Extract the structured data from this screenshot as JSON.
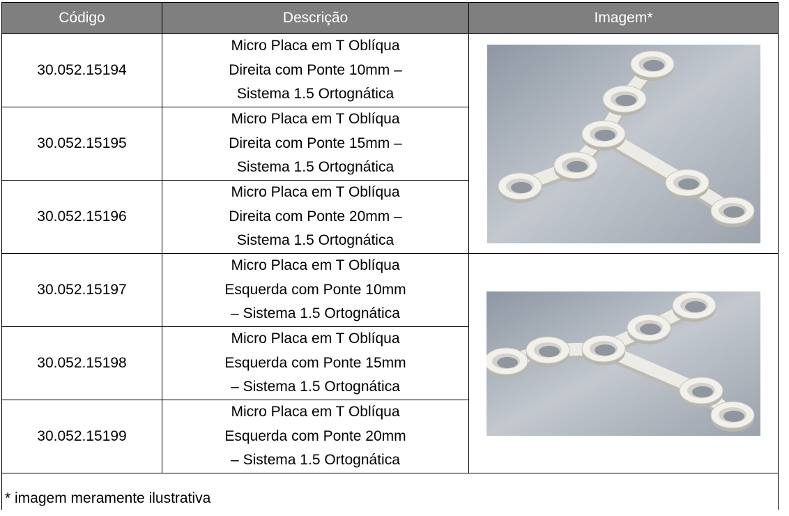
{
  "table": {
    "header": [
      "Código",
      "Descrição",
      "Imagem*"
    ],
    "rows": [
      {
        "code": "30.052.15194",
        "description": [
          "Micro Placa em T Oblíqua",
          "Direita com Ponte 10mm –",
          "Sistema 1.5 Ortognática"
        ]
      },
      {
        "code": "30.052.15195",
        "description": [
          "Micro Placa em T Oblíqua",
          "Direita com Ponte 15mm –",
          "Sistema 1.5 Ortognática"
        ]
      },
      {
        "code": "30.052.15196",
        "description": [
          "Micro Placa em T Oblíqua",
          "Direita com Ponte 20mm –",
          "Sistema 1.5 Ortognática"
        ]
      },
      {
        "code": "30.052.15197",
        "description": [
          "Micro Placa em T Oblíqua",
          "Esquerda com Ponte 10mm",
          "– Sistema 1.5 Ortognática"
        ]
      },
      {
        "code": "30.052.15198",
        "description": [
          "Micro Placa em T Oblíqua",
          "Esquerda com Ponte 15mm",
          "– Sistema 1.5 Ortognática"
        ]
      },
      {
        "code": "30.052.15199",
        "description": [
          "Micro Placa em T Oblíqua",
          "Esquerda com Ponte 20mm",
          "– Sistema 1.5 Ortognática"
        ]
      }
    ],
    "note": "* imagem meramente ilustrativa"
  }
}
